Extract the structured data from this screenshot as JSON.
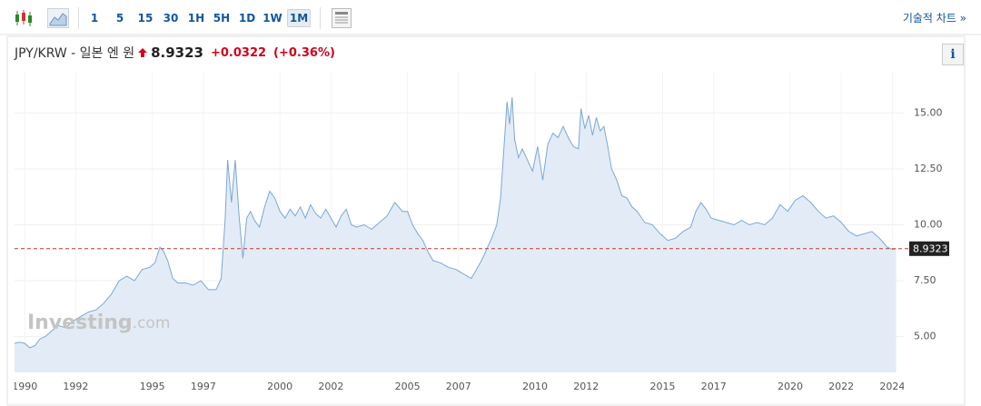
{
  "toolbar": {
    "intervals": [
      "1",
      "5",
      "15",
      "30",
      "1H",
      "5H",
      "1D",
      "1W",
      "1M"
    ],
    "selected": "1M",
    "technical_link": "기술적 차트 »"
  },
  "header": {
    "symbol": "JPY/KRW - 일본 엔 원",
    "change": "+0.0322",
    "change_pct": "(+0.36%)",
    "info": "i"
  },
  "watermark": [
    "Investing",
    ".com"
  ],
  "chart_data": {
    "type": "area",
    "color": "#7aa7d6",
    "fill": "#e3ecf6",
    "last_price": 8.9323,
    "last_price_color": "#c0392b",
    "xlim": [
      1989.6,
      2024.45
    ],
    "ylim": [
      3.4,
      16.6
    ],
    "xticks": [
      1990,
      1992,
      1995,
      1997,
      2000,
      2002,
      2005,
      2007,
      2010,
      2012,
      2015,
      2017,
      2020,
      2022,
      2024
    ],
    "yticks": [
      {
        "value": 5,
        "label": "5.00"
      },
      {
        "value": 7.5,
        "label": "7.50"
      },
      {
        "value": 10,
        "label": "10.00"
      },
      {
        "value": 12.5,
        "label": "12.50"
      },
      {
        "value": 15,
        "label": "15.00"
      }
    ],
    "grid": true,
    "x": [
      1989.6,
      1989.8,
      1990.0,
      1990.2,
      1990.4,
      1990.6,
      1990.8,
      1991.0,
      1991.3,
      1991.6,
      1991.9,
      1992.2,
      1992.5,
      1992.8,
      1993.1,
      1993.4,
      1993.7,
      1994.0,
      1994.3,
      1994.6,
      1994.9,
      1995.1,
      1995.3,
      1995.45,
      1995.6,
      1995.8,
      1996.0,
      1996.3,
      1996.6,
      1996.9,
      1997.2,
      1997.5,
      1997.7,
      1997.85,
      1997.95,
      1998.1,
      1998.25,
      1998.4,
      1998.55,
      1998.7,
      1998.85,
      1999.0,
      1999.2,
      1999.4,
      1999.6,
      1999.8,
      2000.0,
      2000.2,
      2000.4,
      2000.6,
      2000.8,
      2001.0,
      2001.2,
      2001.4,
      2001.6,
      2001.8,
      2002.0,
      2002.2,
      2002.4,
      2002.6,
      2002.8,
      2003.0,
      2003.3,
      2003.6,
      2003.9,
      2004.2,
      2004.5,
      2004.8,
      2005.0,
      2005.2,
      2005.4,
      2005.6,
      2005.8,
      2006.0,
      2006.3,
      2006.6,
      2006.9,
      2007.2,
      2007.5,
      2007.7,
      2007.9,
      2008.1,
      2008.3,
      2008.5,
      2008.65,
      2008.8,
      2008.9,
      2009.0,
      2009.1,
      2009.2,
      2009.35,
      2009.5,
      2009.7,
      2009.9,
      2010.1,
      2010.3,
      2010.5,
      2010.7,
      2010.9,
      2011.1,
      2011.3,
      2011.5,
      2011.7,
      2011.8,
      2011.95,
      2012.1,
      2012.25,
      2012.4,
      2012.55,
      2012.7,
      2012.85,
      2013.0,
      2013.2,
      2013.4,
      2013.6,
      2013.8,
      2014.0,
      2014.3,
      2014.6,
      2014.9,
      2015.2,
      2015.5,
      2015.8,
      2016.1,
      2016.3,
      2016.5,
      2016.7,
      2016.9,
      2017.2,
      2017.5,
      2017.8,
      2018.1,
      2018.4,
      2018.7,
      2019.0,
      2019.3,
      2019.6,
      2019.9,
      2020.2,
      2020.5,
      2020.8,
      2021.1,
      2021.4,
      2021.7,
      2022.0,
      2022.3,
      2022.6,
      2022.9,
      2023.2,
      2023.5,
      2023.8,
      2024.0,
      2024.15
    ],
    "values": [
      4.7,
      4.75,
      4.7,
      4.5,
      4.6,
      4.9,
      5.0,
      5.2,
      5.5,
      5.4,
      5.7,
      5.9,
      6.1,
      6.2,
      6.5,
      6.9,
      7.5,
      7.7,
      7.5,
      8.0,
      8.1,
      8.3,
      9.0,
      8.8,
      8.4,
      7.6,
      7.4,
      7.4,
      7.3,
      7.5,
      7.1,
      7.1,
      7.6,
      10.2,
      12.9,
      11.0,
      12.9,
      10.4,
      8.5,
      10.3,
      10.6,
      10.2,
      9.9,
      10.8,
      11.5,
      11.2,
      10.6,
      10.3,
      10.7,
      10.4,
      10.8,
      10.3,
      10.9,
      10.5,
      10.3,
      10.7,
      10.3,
      9.9,
      10.4,
      10.7,
      10.0,
      9.9,
      10.0,
      9.8,
      10.1,
      10.4,
      11.0,
      10.6,
      10.6,
      10.0,
      9.6,
      9.3,
      8.8,
      8.4,
      8.3,
      8.1,
      8.0,
      7.8,
      7.6,
      8.0,
      8.4,
      8.9,
      9.4,
      10.0,
      11.2,
      13.8,
      15.5,
      14.5,
      15.7,
      13.8,
      13.0,
      13.4,
      12.9,
      12.4,
      13.5,
      12.0,
      13.6,
      14.1,
      13.9,
      14.4,
      13.9,
      13.5,
      13.4,
      15.2,
      14.3,
      14.9,
      14.0,
      14.8,
      14.2,
      14.4,
      13.5,
      12.5,
      12.0,
      11.3,
      11.2,
      10.8,
      10.6,
      10.1,
      10.0,
      9.6,
      9.3,
      9.4,
      9.7,
      9.9,
      10.6,
      11.0,
      10.7,
      10.3,
      10.2,
      10.1,
      10.0,
      10.2,
      10.0,
      10.1,
      10.0,
      10.3,
      10.9,
      10.6,
      11.1,
      11.3,
      11.0,
      10.6,
      10.3,
      10.4,
      10.1,
      9.7,
      9.5,
      9.6,
      9.7,
      9.4,
      9.0,
      8.9,
      8.9323
    ]
  }
}
